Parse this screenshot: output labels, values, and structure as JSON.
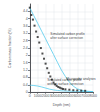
{
  "chart_data": {
    "type": "line",
    "xlabel": "Depth (nm)",
    "ylabel": "Carbon mass fraction (%)",
    "xlim": [
      0,
      8000
    ],
    "ylim": [
      0,
      4.8
    ],
    "xticks": [
      0,
      1000,
      2000,
      3000,
      4000,
      5000,
      6000,
      7000,
      8000
    ],
    "yticks": [
      0,
      0.4,
      0.8,
      1.2,
      1.6,
      2.0,
      2.4,
      2.8,
      3.2,
      3.6,
      4.0,
      4.4
    ],
    "grid": true,
    "series": [
      {
        "type": "line",
        "color": "#55ccee",
        "x": [
          0,
          500,
          1000,
          1500,
          2000,
          2500,
          3000,
          3500,
          4000,
          4500,
          5000,
          5500,
          6000,
          6500,
          7000,
          7500,
          8000
        ],
        "values": [
          4.6,
          4.17,
          3.75,
          3.32,
          2.9,
          2.47,
          2.05,
          1.62,
          1.2,
          0.85,
          0.55,
          0.32,
          0.18,
          0.1,
          0.06,
          0.04,
          0.03
        ]
      },
      {
        "type": "line",
        "color": "#55ccee",
        "x": [
          0,
          200,
          500,
          1000,
          1500,
          2000,
          2500,
          3000,
          3500,
          4000,
          5000,
          6000,
          7000,
          8000
        ],
        "values": [
          0.38,
          0.37,
          0.36,
          0.33,
          0.28,
          0.22,
          0.16,
          0.12,
          0.09,
          0.07,
          0.05,
          0.04,
          0.03,
          0.02
        ]
      },
      {
        "type": "scatter",
        "marker": "square",
        "color": "#222222",
        "x": [
          0,
          200,
          400,
          600,
          800,
          1000,
          1200,
          1400,
          1600,
          1800,
          2000,
          2200,
          2400,
          2600,
          2800,
          3000,
          3200,
          3400,
          3600,
          3800,
          4000,
          4200,
          4500,
          5000,
          5500,
          6000,
          6500,
          7000
        ],
        "values": [
          4.6,
          4.2,
          3.95,
          3.62,
          3.3,
          3.0,
          2.7,
          2.4,
          2.1,
          1.82,
          1.55,
          1.3,
          1.05,
          0.85,
          0.68,
          0.52,
          0.42,
          0.34,
          0.28,
          0.24,
          0.2,
          0.17,
          0.15,
          0.13,
          0.1,
          0.09,
          0.08,
          0.07
        ]
      }
    ],
    "annotations": [
      {
        "text": "Simulated carbon profile\nafter surface correction",
        "x": 2600,
        "y": 3.05
      },
      {
        "text": "Simulated carbon profile\nwithout surface correction",
        "x": 2200,
        "y": 0.55
      },
      {
        "text": "Microprobe analyses",
        "x": 4600,
        "y": 0.75
      }
    ]
  }
}
